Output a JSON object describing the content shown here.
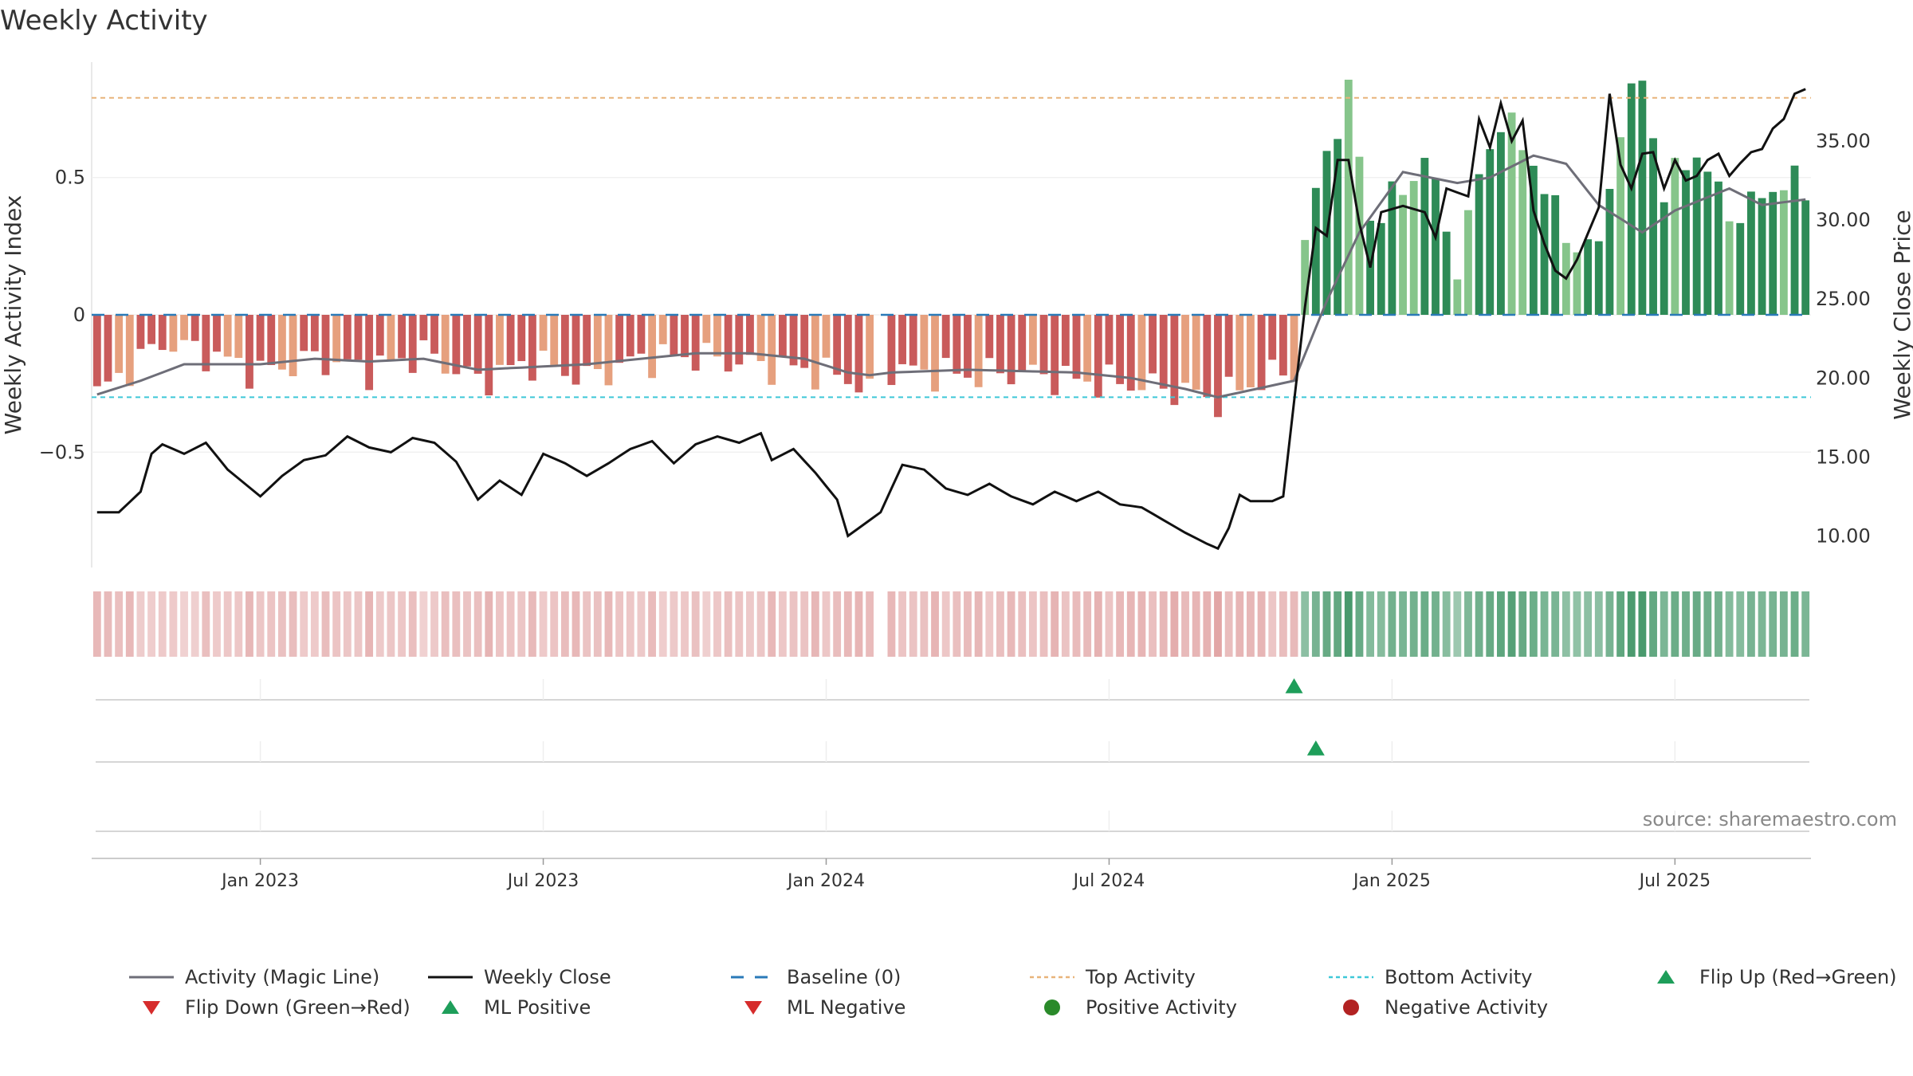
{
  "chart_data": {
    "type": "bar",
    "title": "Weekly Activity",
    "ylabel": "Weekly Activity Index",
    "y2label": "Weekly Close Price",
    "ylim": [
      -0.92,
      0.92
    ],
    "y2lim": [
      8.0,
      40.0
    ],
    "y_ticks": [
      {
        "v": 0.5,
        "label": "0.5"
      },
      {
        "v": 0,
        "label": "0"
      },
      {
        "v": -0.5,
        "label": "−0.5"
      }
    ],
    "y2_ticks": [
      {
        "v": 35,
        "label": "35.00"
      },
      {
        "v": 30,
        "label": "30.00"
      },
      {
        "v": 25,
        "label": "25.00"
      },
      {
        "v": 20,
        "label": "20.00"
      },
      {
        "v": 15,
        "label": "15.00"
      },
      {
        "v": 10,
        "label": "10.00"
      }
    ],
    "x_ticks": [
      {
        "week": 15,
        "label": "Jan 2023"
      },
      {
        "week": 41,
        "label": "Jul 2023"
      },
      {
        "week": 67,
        "label": "Jan 2024"
      },
      {
        "week": 93,
        "label": "Jul 2024"
      },
      {
        "week": 119,
        "label": "Jan 2025"
      },
      {
        "week": 145,
        "label": "Jul 2025"
      }
    ],
    "weeks": 158,
    "gap_week": 72,
    "top_activity": 0.79,
    "bottom_activity": -0.3,
    "activity_keys": [
      [
        0,
        -0.29
      ],
      [
        6,
        -0.1
      ],
      [
        10,
        -0.14
      ],
      [
        15,
        -0.21
      ],
      [
        20,
        -0.16
      ],
      [
        25,
        -0.2
      ],
      [
        30,
        -0.14
      ],
      [
        35,
        -0.24
      ],
      [
        40,
        -0.17
      ],
      [
        45,
        -0.23
      ],
      [
        50,
        -0.16
      ],
      [
        55,
        -0.15
      ],
      [
        60,
        -0.18
      ],
      [
        65,
        -0.2
      ],
      [
        69,
        -0.23
      ],
      [
        71,
        -0.28
      ],
      [
        73,
        -0.2
      ],
      [
        80,
        -0.22
      ],
      [
        85,
        -0.21
      ],
      [
        90,
        -0.24
      ],
      [
        95,
        -0.25
      ],
      [
        100,
        -0.28
      ],
      [
        103,
        -0.31
      ],
      [
        106,
        -0.25
      ],
      [
        110,
        -0.2
      ],
      [
        111,
        0.26
      ],
      [
        113,
        0.6
      ],
      [
        115,
        0.8
      ],
      [
        117,
        0.35
      ],
      [
        120,
        0.45
      ],
      [
        122,
        0.58
      ],
      [
        125,
        0.18
      ],
      [
        127,
        0.5
      ],
      [
        129,
        0.72
      ],
      [
        132,
        0.56
      ],
      [
        135,
        0.28
      ],
      [
        138,
        0.24
      ],
      [
        140,
        0.7
      ],
      [
        142,
        0.86
      ],
      [
        144,
        0.45
      ],
      [
        147,
        0.6
      ],
      [
        150,
        0.36
      ],
      [
        153,
        0.42
      ],
      [
        155,
        0.5
      ],
      [
        157,
        0.44
      ]
    ],
    "magic_keys": [
      [
        0,
        -0.29
      ],
      [
        4,
        -0.24
      ],
      [
        8,
        -0.18
      ],
      [
        15,
        -0.18
      ],
      [
        20,
        -0.16
      ],
      [
        25,
        -0.17
      ],
      [
        30,
        -0.16
      ],
      [
        35,
        -0.2
      ],
      [
        40,
        -0.19
      ],
      [
        45,
        -0.18
      ],
      [
        50,
        -0.16
      ],
      [
        55,
        -0.14
      ],
      [
        60,
        -0.14
      ],
      [
        65,
        -0.16
      ],
      [
        69,
        -0.21
      ],
      [
        71,
        -0.22
      ],
      [
        73,
        -0.21
      ],
      [
        80,
        -0.2
      ],
      [
        90,
        -0.21
      ],
      [
        95,
        -0.23
      ],
      [
        100,
        -0.27
      ],
      [
        103,
        -0.3
      ],
      [
        110,
        -0.24
      ],
      [
        113,
        0.05
      ],
      [
        116,
        0.3
      ],
      [
        120,
        0.52
      ],
      [
        125,
        0.48
      ],
      [
        128,
        0.5
      ],
      [
        132,
        0.58
      ],
      [
        135,
        0.55
      ],
      [
        138,
        0.4
      ],
      [
        142,
        0.3
      ],
      [
        145,
        0.38
      ],
      [
        150,
        0.46
      ],
      [
        153,
        0.4
      ],
      [
        157,
        0.42
      ]
    ],
    "close_keys": [
      [
        0,
        11.5
      ],
      [
        2,
        11.5
      ],
      [
        4,
        12.8
      ],
      [
        5,
        15.2
      ],
      [
        6,
        15.8
      ],
      [
        8,
        15.2
      ],
      [
        10,
        15.9
      ],
      [
        12,
        14.2
      ],
      [
        15,
        12.5
      ],
      [
        17,
        13.8
      ],
      [
        19,
        14.8
      ],
      [
        21,
        15.1
      ],
      [
        23,
        16.3
      ],
      [
        25,
        15.6
      ],
      [
        27,
        15.3
      ],
      [
        29,
        16.2
      ],
      [
        31,
        15.9
      ],
      [
        33,
        14.7
      ],
      [
        35,
        12.3
      ],
      [
        37,
        13.5
      ],
      [
        39,
        12.6
      ],
      [
        41,
        15.2
      ],
      [
        43,
        14.6
      ],
      [
        45,
        13.8
      ],
      [
        47,
        14.6
      ],
      [
        49,
        15.5
      ],
      [
        51,
        16.0
      ],
      [
        53,
        14.6
      ],
      [
        55,
        15.8
      ],
      [
        57,
        16.3
      ],
      [
        59,
        15.9
      ],
      [
        61,
        16.5
      ],
      [
        62,
        14.8
      ],
      [
        64,
        15.5
      ],
      [
        66,
        14.0
      ],
      [
        68,
        12.3
      ],
      [
        69,
        10.0
      ],
      [
        72,
        11.5
      ],
      [
        74,
        14.5
      ],
      [
        76,
        14.2
      ],
      [
        78,
        13.0
      ],
      [
        80,
        12.6
      ],
      [
        82,
        13.3
      ],
      [
        84,
        12.5
      ],
      [
        86,
        12.0
      ],
      [
        88,
        12.8
      ],
      [
        90,
        12.2
      ],
      [
        92,
        12.8
      ],
      [
        94,
        12.0
      ],
      [
        96,
        11.8
      ],
      [
        98,
        11.0
      ],
      [
        100,
        10.2
      ],
      [
        102,
        9.5
      ],
      [
        103,
        9.2
      ],
      [
        104,
        10.5
      ],
      [
        105,
        12.6
      ],
      [
        106,
        12.2
      ],
      [
        108,
        12.2
      ],
      [
        109,
        12.5
      ],
      [
        110,
        18.5
      ],
      [
        111,
        24.5
      ],
      [
        112,
        29.5
      ],
      [
        113,
        29.0
      ],
      [
        114,
        33.8
      ],
      [
        115,
        33.8
      ],
      [
        116,
        29.8
      ],
      [
        117,
        27.0
      ],
      [
        118,
        30.5
      ],
      [
        120,
        30.9
      ],
      [
        122,
        30.5
      ],
      [
        123,
        28.9
      ],
      [
        124,
        32.0
      ],
      [
        126,
        31.5
      ],
      [
        127,
        36.4
      ],
      [
        128,
        34.6
      ],
      [
        129,
        37.4
      ],
      [
        130,
        35.0
      ],
      [
        131,
        36.3
      ],
      [
        132,
        30.6
      ],
      [
        133,
        28.5
      ],
      [
        134,
        26.8
      ],
      [
        135,
        26.3
      ],
      [
        136,
        27.5
      ],
      [
        138,
        30.8
      ],
      [
        139,
        38.0
      ],
      [
        140,
        33.5
      ],
      [
        141,
        32.0
      ],
      [
        142,
        34.2
      ],
      [
        143,
        34.3
      ],
      [
        144,
        32.0
      ],
      [
        145,
        33.8
      ],
      [
        146,
        32.5
      ],
      [
        147,
        32.8
      ],
      [
        148,
        33.8
      ],
      [
        149,
        34.2
      ],
      [
        150,
        32.8
      ],
      [
        151,
        33.6
      ],
      [
        152,
        34.3
      ],
      [
        153,
        34.5
      ],
      [
        154,
        35.8
      ],
      [
        155,
        36.4
      ],
      [
        156,
        38.0
      ],
      [
        157,
        38.3
      ]
    ],
    "flip_up_weeks": [
      110
    ],
    "ml_positive_weeks": [
      112
    ],
    "colors": {
      "neg_dark": "#c95b5b",
      "neg_light": "#e6a07e",
      "pos_dark": "#2e8b57",
      "pos_light": "#86c58b",
      "magic": "#6e6e78",
      "close": "#111111",
      "baseline": "#2a7ab8",
      "top": "#e8b37a",
      "bottom": "#3ec8d8",
      "marker_up": "#1e9e5a",
      "marker_down": "#d62c2c",
      "pos_activity": "#2a8a2a",
      "neg_activity": "#b22222"
    },
    "legend": [
      {
        "key": "magic",
        "label": "Activity (Magic Line)"
      },
      {
        "key": "close",
        "label": "Weekly Close"
      },
      {
        "key": "baseline",
        "label": "Baseline (0)"
      },
      {
        "key": "top",
        "label": "Top Activity"
      },
      {
        "key": "bottom",
        "label": "Bottom Activity"
      },
      {
        "key": "flip_up",
        "label": "Flip Up (Red→Green)"
      },
      {
        "key": "flip_down",
        "label": "Flip Down (Green→Red)"
      },
      {
        "key": "ml_pos",
        "label": "ML Positive"
      },
      {
        "key": "ml_neg",
        "label": "ML Negative"
      },
      {
        "key": "pos_act",
        "label": "Positive Activity"
      },
      {
        "key": "neg_act",
        "label": "Negative Activity"
      }
    ],
    "source": "source: sharemaestro.com"
  }
}
